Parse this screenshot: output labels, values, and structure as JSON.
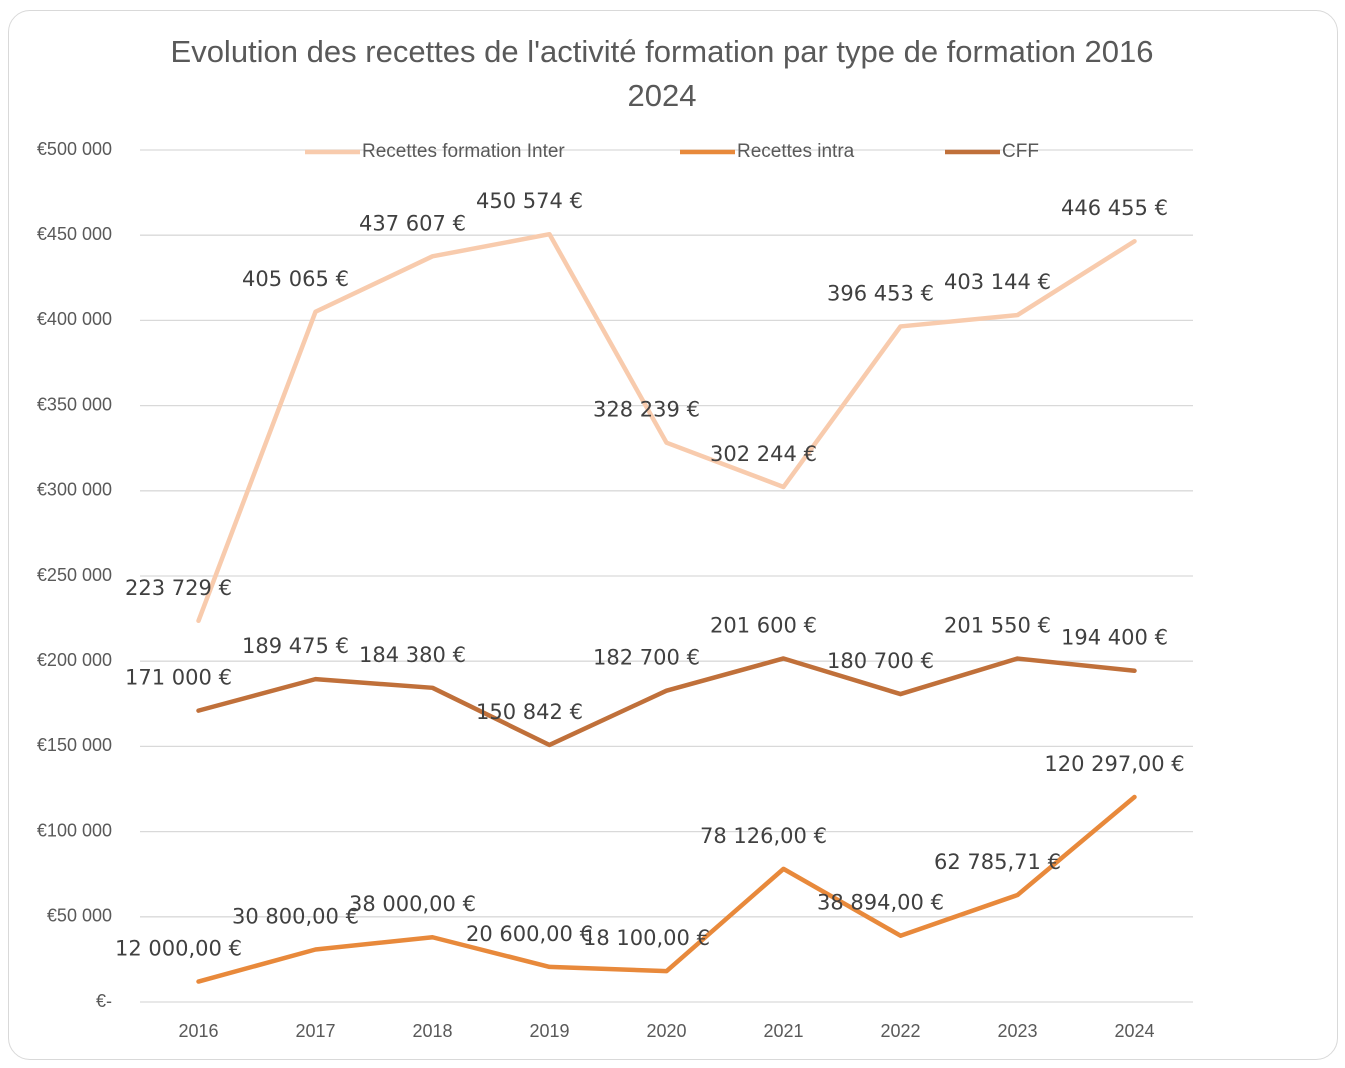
{
  "chart_data": {
    "type": "line",
    "title": "Evolution des recettes de l'activité formation par type de formation 2016 2024",
    "categories": [
      "2016",
      "2017",
      "2018",
      "2019",
      "2020",
      "2021",
      "2022",
      "2023",
      "2024"
    ],
    "series": [
      {
        "name": "Recettes formation Inter",
        "color": "#f8cbad",
        "values": [
          223729,
          405065,
          437607,
          450574,
          328239,
          302244,
          396453,
          403144,
          446455
        ],
        "value_labels": [
          "223 729 €",
          "405 065 €",
          "437 607 €",
          "450 574 €",
          "328 239 €",
          "302 244 €",
          "396 453 €",
          "403 144 €",
          "446 455 €"
        ]
      },
      {
        "name": "Recettes intra",
        "color": "#e8893b",
        "values": [
          12000,
          30800,
          38000,
          20600,
          18100,
          78126,
          38894,
          62785.71,
          120297
        ],
        "value_labels": [
          "12 000,00 €",
          "30 800,00 €",
          "38 000,00 €",
          "20 600,00 €",
          "18 100,00 €",
          "78 126,00 €",
          "38 894,00 €",
          "62 785,71 €",
          "120 297,00 €"
        ]
      },
      {
        "name": "CFF",
        "color": "#c0703a",
        "values": [
          171000,
          189475,
          184380,
          150842,
          182700,
          201600,
          180700,
          201550,
          194400
        ],
        "value_labels": [
          "171 000 €",
          "189 475 €",
          "184 380 €",
          "150 842 €",
          "182 700 €",
          "201 600 €",
          "180 700 €",
          "201 550 €",
          "194 400 €"
        ]
      }
    ],
    "ylim": [
      0,
      500000
    ],
    "yticks": [
      {
        "value": 0,
        "label": "€-"
      },
      {
        "value": 50000,
        "label": "€50 000"
      },
      {
        "value": 100000,
        "label": "€100 000"
      },
      {
        "value": 150000,
        "label": "€150 000"
      },
      {
        "value": 200000,
        "label": "€200 000"
      },
      {
        "value": 250000,
        "label": "€250 000"
      },
      {
        "value": 300000,
        "label": "€300 000"
      },
      {
        "value": 350000,
        "label": "€350 000"
      },
      {
        "value": 400000,
        "label": "€400 000"
      },
      {
        "value": 450000,
        "label": "€450 000"
      },
      {
        "value": 500000,
        "label": "€500 000"
      }
    ],
    "grid": true,
    "legend": "top"
  }
}
